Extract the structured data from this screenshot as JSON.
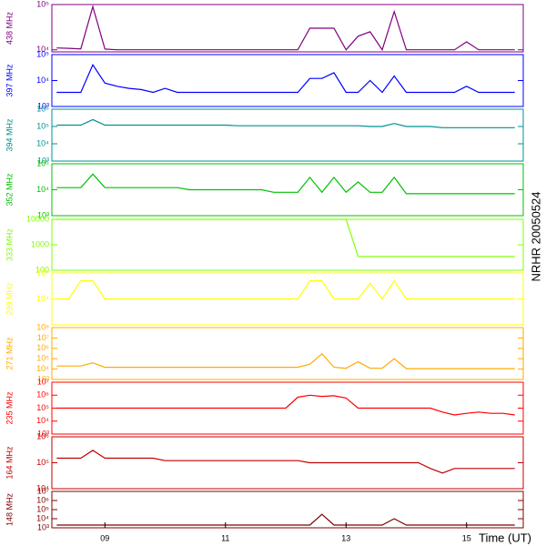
{
  "chart_data": {
    "type": "line",
    "log_scale": true,
    "xlabel": "Time (UT)",
    "side_label": "NRHR 20050524",
    "xlim": [
      8.12,
      15.94
    ],
    "xticks": [
      {
        "value": 9,
        "label": "09"
      },
      {
        "value": 11,
        "label": "11"
      },
      {
        "value": 13,
        "label": "13"
      },
      {
        "value": 15,
        "label": "15"
      }
    ],
    "x": [
      8.2,
      8.4,
      8.6,
      8.8,
      9.0,
      9.2,
      9.4,
      9.6,
      9.8,
      10.0,
      10.2,
      10.4,
      10.6,
      10.8,
      11.0,
      11.2,
      11.4,
      11.6,
      11.8,
      12.0,
      12.2,
      12.4,
      12.6,
      12.8,
      13.0,
      13.2,
      13.4,
      13.6,
      13.8,
      14.0,
      14.2,
      14.4,
      14.6,
      14.8,
      15.0,
      15.2,
      15.4,
      15.6,
      15.8
    ],
    "series": [
      {
        "name": "438 MHz",
        "color": "#800080",
        "ylim": [
          9000,
          100000
        ],
        "yticks": [
          {
            "value": 10000,
            "label": "10⁴"
          },
          {
            "value": 100000,
            "label": "10⁵"
          }
        ],
        "values": [
          11000,
          10800,
          10500,
          90000,
          10400,
          10000,
          10000,
          10000,
          10000,
          10000,
          10000,
          10000,
          10000,
          10000,
          10000,
          10000,
          10000,
          10000,
          10000,
          10000,
          10000,
          30000,
          30000,
          30000,
          10000,
          20000,
          25000,
          10000,
          70000,
          10000,
          10000,
          10000,
          10000,
          10000,
          15000,
          10000,
          10000,
          10000,
          10000
        ]
      },
      {
        "name": "397 MHz",
        "color": "#0000ff",
        "ylim": [
          1000,
          100000
        ],
        "yticks": [
          {
            "value": 1000,
            "label": "10³"
          },
          {
            "value": 10000,
            "label": "10⁴"
          },
          {
            "value": 100000,
            "label": "10⁵"
          }
        ],
        "values": [
          3500,
          3500,
          3500,
          40000,
          8000,
          6000,
          5000,
          4500,
          3500,
          5000,
          3500,
          3500,
          3500,
          3500,
          3500,
          3500,
          3500,
          3500,
          3500,
          3500,
          3500,
          12000,
          12000,
          20000,
          3500,
          3500,
          10000,
          3500,
          15000,
          3500,
          3500,
          3500,
          3500,
          3500,
          6000,
          3500,
          3500,
          3500,
          3500
        ]
      },
      {
        "name": "394 MHz",
        "color": "#009090",
        "ylim": [
          1000,
          1000000
        ],
        "yticks": [
          {
            "value": 1000,
            "label": "10³"
          },
          {
            "value": 10000,
            "label": "10⁴"
          },
          {
            "value": 100000,
            "label": "10⁵"
          },
          {
            "value": 1000000,
            "label": "10⁶"
          }
        ],
        "values": [
          120000,
          120000,
          120000,
          250000,
          120000,
          120000,
          120000,
          120000,
          120000,
          120000,
          120000,
          120000,
          120000,
          120000,
          120000,
          110000,
          110000,
          110000,
          110000,
          110000,
          110000,
          110000,
          110000,
          110000,
          110000,
          110000,
          100000,
          100000,
          150000,
          100000,
          100000,
          100000,
          85000,
          85000,
          85000,
          85000,
          85000,
          85000,
          85000
        ]
      },
      {
        "name": "352 MHz",
        "color": "#00c000",
        "ylim": [
          1000,
          100000
        ],
        "yticks": [
          {
            "value": 1000,
            "label": "10³"
          },
          {
            "value": 10000,
            "label": "10⁴"
          },
          {
            "value": 100000,
            "label": "10⁵"
          }
        ],
        "values": [
          12000,
          12000,
          12000,
          40000,
          12000,
          12000,
          12000,
          12000,
          12000,
          12000,
          12000,
          10000,
          10000,
          10000,
          10000,
          10000,
          10000,
          10000,
          8000,
          8000,
          8000,
          30000,
          8000,
          30000,
          8000,
          20000,
          8000,
          8000,
          30000,
          7000,
          7000,
          7000,
          7000,
          7000,
          7000,
          7000,
          7000,
          7000,
          7000
        ]
      },
      {
        "name": "333 MHz",
        "color": "#80ff00",
        "ylim": [
          100,
          10000
        ],
        "yticks": [
          100,
          1000,
          10000
        ],
        "values": [
          10000,
          10000,
          10000,
          10000,
          10000,
          10000,
          10000,
          10000,
          10000,
          10000,
          10000,
          10000,
          10000,
          10000,
          10000,
          10000,
          10000,
          10000,
          10000,
          10000,
          10000,
          10000,
          10000,
          10000,
          10000,
          350,
          350,
          350,
          350,
          350,
          350,
          350,
          350,
          350,
          350,
          350,
          350,
          350,
          350
        ]
      },
      {
        "name": "299 MHz",
        "color": "#ffff00",
        "ylim": [
          1000,
          100000
        ],
        "yticks": [
          {
            "value": 10000,
            "label": "10⁴"
          },
          {
            "value": 100000,
            "label": "10⁵"
          }
        ],
        "values": [
          10000,
          10000,
          50000,
          50000,
          10000,
          10000,
          10000,
          10000,
          10000,
          10000,
          10000,
          10000,
          10000,
          10000,
          10000,
          10000,
          10000,
          10000,
          10000,
          10000,
          10000,
          50000,
          50000,
          10000,
          10000,
          10000,
          40000,
          10000,
          50000,
          10000,
          10000,
          10000,
          10000,
          10000,
          10000,
          10000,
          10000,
          10000,
          10000
        ]
      },
      {
        "name": "271 MHz",
        "color": "#ffaa00",
        "ylim": [
          1000,
          100000000
        ],
        "yticks": [
          {
            "value": 1000,
            "label": "10³"
          },
          {
            "value": 10000,
            "label": "10⁴"
          },
          {
            "value": 100000,
            "label": "10⁵"
          },
          {
            "value": 1000000,
            "label": "10⁶"
          },
          {
            "value": 10000000,
            "label": "10⁷"
          },
          {
            "value": 100000000,
            "label": "10⁸"
          }
        ],
        "values": [
          20000,
          20000,
          20000,
          40000,
          15000,
          15000,
          15000,
          15000,
          15000,
          15000,
          15000,
          15000,
          15000,
          15000,
          15000,
          15000,
          15000,
          15000,
          15000,
          15000,
          15000,
          30000,
          300000,
          15000,
          12000,
          50000,
          12000,
          12000,
          100000,
          11000,
          11000,
          11000,
          11000,
          11000,
          11000,
          11000,
          11000,
          11000,
          11000
        ]
      },
      {
        "name": "235 MHz",
        "color": "#ff0000",
        "ylim": [
          1000,
          10000000
        ],
        "yticks": [
          {
            "value": 1000,
            "label": "10³"
          },
          {
            "value": 10000,
            "label": "10⁴"
          },
          {
            "value": 100000,
            "label": "10⁵"
          },
          {
            "value": 1000000,
            "label": "10⁶"
          },
          {
            "value": 10000000,
            "label": "10⁷"
          }
        ],
        "values": [
          100000,
          100000,
          100000,
          100000,
          100000,
          100000,
          100000,
          100000,
          100000,
          100000,
          100000,
          100000,
          100000,
          100000,
          100000,
          100000,
          100000,
          100000,
          100000,
          100000,
          700000,
          1000000,
          800000,
          900000,
          600000,
          100000,
          100000,
          100000,
          100000,
          100000,
          100000,
          100000,
          50000,
          30000,
          40000,
          50000,
          40000,
          40000,
          30000
        ]
      },
      {
        "name": "164 MHz",
        "color": "#c00000",
        "ylim": [
          10000,
          1000000
        ],
        "yticks": [
          {
            "value": 10000,
            "label": "10⁴"
          },
          {
            "value": 100000,
            "label": "10⁵"
          },
          {
            "value": 1000000,
            "label": "10⁶"
          }
        ],
        "values": [
          150000,
          150000,
          150000,
          300000,
          150000,
          150000,
          150000,
          150000,
          150000,
          120000,
          120000,
          120000,
          120000,
          120000,
          120000,
          120000,
          120000,
          120000,
          120000,
          120000,
          120000,
          100000,
          100000,
          100000,
          100000,
          100000,
          100000,
          100000,
          100000,
          100000,
          100000,
          60000,
          40000,
          60000,
          60000,
          60000,
          60000,
          60000,
          60000
        ]
      },
      {
        "name": "148 MHz",
        "color": "#800000",
        "ylim": [
          1000,
          10000000
        ],
        "yticks": [
          {
            "value": 1000,
            "label": "10³"
          },
          {
            "value": 10000,
            "label": "10⁴"
          },
          {
            "value": 100000,
            "label": "10⁵"
          },
          {
            "value": 1000000,
            "label": "10⁶"
          },
          {
            "value": 10000000,
            "label": "10⁷"
          }
        ],
        "values": [
          2000,
          2000,
          2000,
          2000,
          2000,
          2000,
          2000,
          2000,
          2000,
          2000,
          2000,
          2000,
          2000,
          2000,
          2000,
          2000,
          2000,
          2000,
          2000,
          2000,
          2000,
          2000,
          30000,
          2000,
          2000,
          2000,
          2000,
          2000,
          10000,
          2000,
          2000,
          2000,
          2000,
          2000,
          2000,
          2000,
          2000,
          2000,
          2000
        ]
      }
    ]
  }
}
